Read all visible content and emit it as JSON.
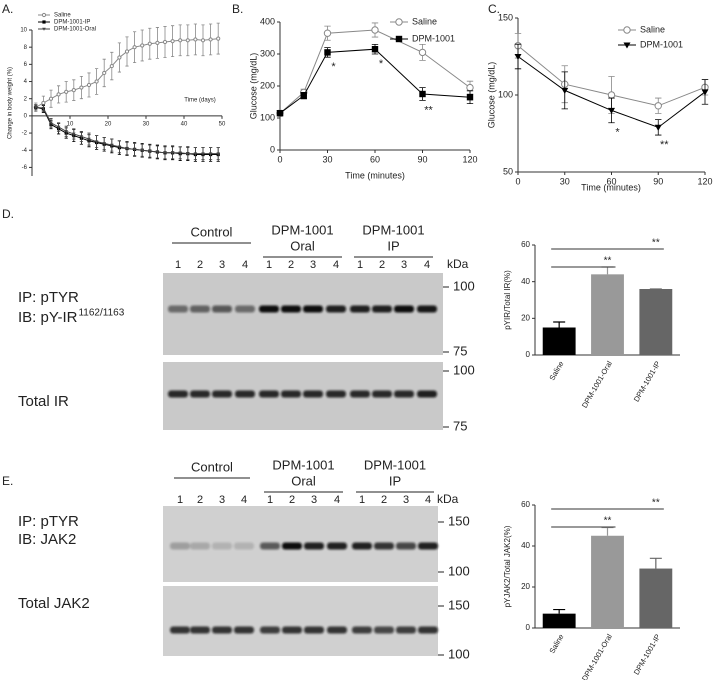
{
  "panels": [
    "A.",
    "B.",
    "C.",
    "D.",
    "E."
  ],
  "chart_data": [
    {
      "type": "line",
      "xlabel": "Time (days)",
      "ylabel": "Change in body weight (%)",
      "x": [
        1,
        3,
        5,
        7,
        9,
        11,
        13,
        15,
        17,
        19,
        21,
        23,
        25,
        27,
        29,
        31,
        33,
        35,
        37,
        39,
        41,
        43,
        45,
        47,
        49
      ],
      "series": [
        {
          "name": "Saline",
          "color": "#888888",
          "marker": "circle-open",
          "values": [
            1,
            1.5,
            2,
            2.5,
            2.8,
            3,
            3.3,
            3.6,
            4,
            5,
            5.8,
            6.8,
            7.5,
            8,
            8.2,
            8.4,
            8.5,
            8.6,
            8.7,
            8.8,
            8.8,
            8.9,
            8.8,
            8.9,
            9
          ],
          "errors": [
            0.5,
            0.8,
            1,
            1,
            1.2,
            1.2,
            1.3,
            1.4,
            1.5,
            1.6,
            1.6,
            1.7,
            1.7,
            1.8,
            1.8,
            1.8,
            1.8,
            1.8,
            1.8,
            1.8,
            1.8,
            1.8,
            1.8,
            1.8,
            1.8
          ]
        },
        {
          "name": "DPM-1001-IP",
          "color": "#000000",
          "marker": "square",
          "values": [
            1,
            0.8,
            -1,
            -1.5,
            -2,
            -2.3,
            -2.6,
            -2.9,
            -3.1,
            -3.3,
            -3.5,
            -3.7,
            -3.8,
            -3.9,
            -4,
            -4.1,
            -4.2,
            -4.3,
            -4.3,
            -4.4,
            -4.4,
            -4.5,
            -4.5,
            -4.5,
            -4.5
          ],
          "errors": [
            0.3,
            0.4,
            0.5,
            0.6,
            0.6,
            0.7,
            0.7,
            0.7,
            0.8,
            0.8,
            0.8,
            0.8,
            0.8,
            0.8,
            0.8,
            0.8,
            0.8,
            0.8,
            0.8,
            0.8,
            0.8,
            0.8,
            0.8,
            0.8,
            0.8
          ]
        },
        {
          "name": "DPM-1001-Oral",
          "color": "#444444",
          "marker": "triangle",
          "values": [
            1,
            0.9,
            -0.8,
            -1.3,
            -1.8,
            -2.1,
            -2.4,
            -2.7,
            -3,
            -3.2,
            -3.4,
            -3.6,
            -3.8,
            -3.9,
            -4,
            -4.1,
            -4.2,
            -4.3,
            -4.3,
            -4.3,
            -4.4,
            -4.4,
            -4.4,
            -4.4,
            -4.4
          ],
          "errors": [
            0.3,
            0.4,
            0.5,
            0.5,
            0.6,
            0.6,
            0.6,
            0.7,
            0.7,
            0.7,
            0.7,
            0.7,
            0.7,
            0.7,
            0.7,
            0.7,
            0.7,
            0.7,
            0.7,
            0.7,
            0.7,
            0.7,
            0.7,
            0.7,
            0.7
          ]
        }
      ],
      "xlim": [
        0,
        50
      ],
      "xticks": [
        10,
        20,
        30,
        40,
        50
      ],
      "ylim": [
        -7,
        10
      ],
      "yticks": [
        -6,
        -4,
        -2,
        0,
        2,
        4,
        6,
        8,
        10
      ],
      "xaxis": "zero",
      "legend": "upper left",
      "annotations": []
    },
    {
      "type": "line",
      "xlabel": "Time (minutes)",
      "ylabel": "Glucose (mg/dL)",
      "x": [
        0,
        15,
        30,
        60,
        90,
        120
      ],
      "series": [
        {
          "name": "Saline",
          "color": "#888888",
          "marker": "circle-open",
          "values": [
            115,
            180,
            365,
            375,
            305,
            195
          ],
          "errors": [
            8,
            10,
            22,
            22,
            25,
            20
          ]
        },
        {
          "name": "DPM-1001",
          "color": "#000000",
          "marker": "square",
          "values": [
            115,
            170,
            305,
            315,
            175,
            165
          ],
          "errors": [
            8,
            10,
            15,
            15,
            20,
            20
          ]
        }
      ],
      "xlim": [
        0,
        120
      ],
      "xticks": [
        0,
        30,
        60,
        90,
        120
      ],
      "ylim": [
        0,
        400
      ],
      "yticks": [
        0,
        100,
        200,
        300,
        400
      ],
      "xaxis": "bottom",
      "legend": "upper right",
      "annotations": [
        {
          "text": "*",
          "x": 30
        },
        {
          "text": "*",
          "x": 60
        },
        {
          "text": "**",
          "x": 90
        }
      ]
    },
    {
      "type": "line",
      "xlabel": "Time (minutes)",
      "ylabel": "Glucose (mg/dL)",
      "x": [
        0,
        30,
        60,
        90,
        120
      ],
      "series": [
        {
          "name": "Saline",
          "color": "#888888",
          "marker": "circle-open",
          "values": [
            132,
            107,
            100,
            93,
            105
          ],
          "errors": [
            8,
            12,
            12,
            5,
            5
          ]
        },
        {
          "name": "DPM-1001",
          "color": "#000000",
          "marker": "triangle",
          "values": [
            125,
            103,
            90,
            79,
            102
          ],
          "errors": [
            8,
            12,
            8,
            5,
            8
          ]
        }
      ],
      "xlim": [
        0,
        120
      ],
      "xticks": [
        0,
        30,
        60,
        90,
        120
      ],
      "ylim": [
        50,
        150
      ],
      "yticks": [
        50,
        100,
        150
      ],
      "xaxis": "bottom",
      "legend": "upper right",
      "annotations": [
        {
          "text": "*",
          "x": 60
        },
        {
          "text": "**",
          "x": 90
        }
      ]
    },
    {
      "type": "bar",
      "ylabel": "pYIR/Total IR(%)",
      "categories": [
        "Saline",
        "DPM-1001-Oral",
        "DPM-1001-IP"
      ],
      "values": [
        15,
        44,
        36
      ],
      "errors": [
        3,
        4,
        0
      ],
      "colors": [
        "#000000",
        "#999999",
        "#666666"
      ],
      "ylim": [
        0,
        60
      ],
      "yticks": [
        0,
        20,
        40,
        60
      ],
      "annotations": [
        "**",
        "**"
      ]
    },
    {
      "type": "bar",
      "ylabel": "pYJAK2/Total JAK2(%)",
      "categories": [
        "Saline",
        "DPM-1001-Oral",
        "DPM-1001-IP"
      ],
      "values": [
        7,
        45,
        29
      ],
      "errors": [
        2,
        4,
        5
      ],
      "colors": [
        "#000000",
        "#999999",
        "#666666"
      ],
      "ylim": [
        0,
        60
      ],
      "yticks": [
        0,
        20,
        40,
        60
      ],
      "annotations": [
        "**",
        "**"
      ]
    }
  ],
  "blots": [
    {
      "groups": [
        {
          "lines": [
            "Control"
          ],
          "lanes": [
            1,
            2,
            3,
            4
          ]
        },
        {
          "lines": [
            "DPM-1001",
            "Oral"
          ],
          "lanes": [
            1,
            2,
            3,
            4
          ]
        },
        {
          "lines": [
            "DPM-1001",
            "IP"
          ],
          "lanes": [
            1,
            2,
            3,
            4
          ]
        }
      ],
      "unit": "kDa",
      "probes": [
        {
          "labels": [
            "IP: pTYR",
            "IB: pY-IR"
          ],
          "superscript": "1162/1163",
          "markers": [
            100,
            75
          ]
        },
        {
          "labels": [
            "Total IR"
          ],
          "markers": [
            100,
            75
          ]
        }
      ]
    },
    {
      "groups": [
        {
          "lines": [
            "Control"
          ],
          "lanes": [
            1,
            2,
            3,
            4
          ]
        },
        {
          "lines": [
            "DPM-1001",
            "Oral"
          ],
          "lanes": [
            1,
            2,
            3,
            4
          ]
        },
        {
          "lines": [
            "DPM-1001",
            "IP"
          ],
          "lanes": [
            1,
            2,
            3,
            4
          ]
        }
      ],
      "unit": "kDa",
      "probes": [
        {
          "labels": [
            "IP: pTYR",
            "IB: JAK2"
          ],
          "markers": [
            150,
            100
          ]
        },
        {
          "labels": [
            "Total JAK2"
          ],
          "markers": [
            150,
            100
          ]
        }
      ]
    }
  ]
}
